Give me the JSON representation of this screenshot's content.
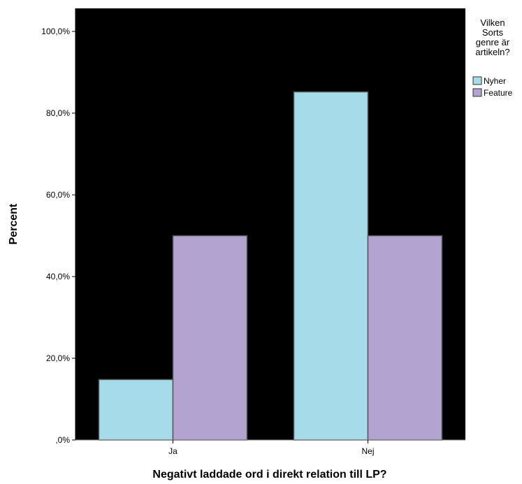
{
  "chart_data": {
    "type": "bar",
    "title": "",
    "xlabel": "Negativt laddade ord i direkt relation till LP?",
    "ylabel": "Percent",
    "categories": [
      "Ja",
      "Nej"
    ],
    "series": [
      {
        "name": "Nyher",
        "values": [
          14.8,
          85.2
        ]
      },
      {
        "name": "Feature",
        "values": [
          50.0,
          50.0
        ]
      }
    ],
    "ylim": [
      0,
      100
    ],
    "yticks": [
      {
        "value": 0,
        "label": ",0%"
      },
      {
        "value": 20,
        "label": "20,0%"
      },
      {
        "value": 40,
        "label": "40,0%"
      },
      {
        "value": 60,
        "label": "60,0%"
      },
      {
        "value": 80,
        "label": "80,0%"
      },
      {
        "value": 100,
        "label": "100,0%"
      }
    ],
    "legend": {
      "title_lines": [
        "Vilken",
        "Sorts",
        "genre är",
        "artikeln?"
      ],
      "placement": "right"
    },
    "grid": false,
    "colors": {
      "plot_background": "#000000",
      "Nyher": "#a6dcea",
      "Feature": "#b3a3d1",
      "bar_border": "#555555"
    }
  }
}
